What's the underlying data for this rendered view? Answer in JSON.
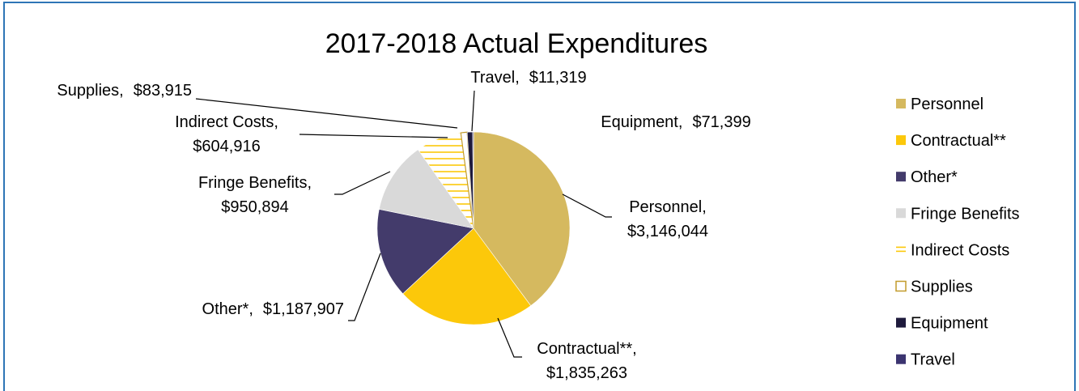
{
  "chart_data": {
    "type": "pie",
    "title": "2017-2018 Actual Expenditures",
    "categories": [
      "Personnel",
      "Contractual**",
      "Other*",
      "Fringe Benefits",
      "Indirect Costs",
      "Supplies",
      "Equipment",
      "Travel"
    ],
    "values": [
      3146044,
      1835263,
      1187907,
      950894,
      604916,
      83915,
      71399,
      11319
    ],
    "value_labels": [
      "$3,146,044",
      "$1,835,263",
      "$1,187,907",
      "$950,894",
      "$604,916",
      "$83,915",
      "$71,399",
      "$11,319"
    ],
    "data_label_separator": ",",
    "colors": [
      "#d5b95f",
      "#fcc80a",
      "#433b6b",
      "#d9d9d9",
      "#fcc80a",
      "#c29b2c",
      "#1e1a3c",
      "#3b3470"
    ],
    "fill_styles": [
      "solid",
      "solid",
      "solid",
      "solid",
      "horizontal-hatch",
      "outline",
      "solid",
      "solid"
    ],
    "legend": "right"
  }
}
